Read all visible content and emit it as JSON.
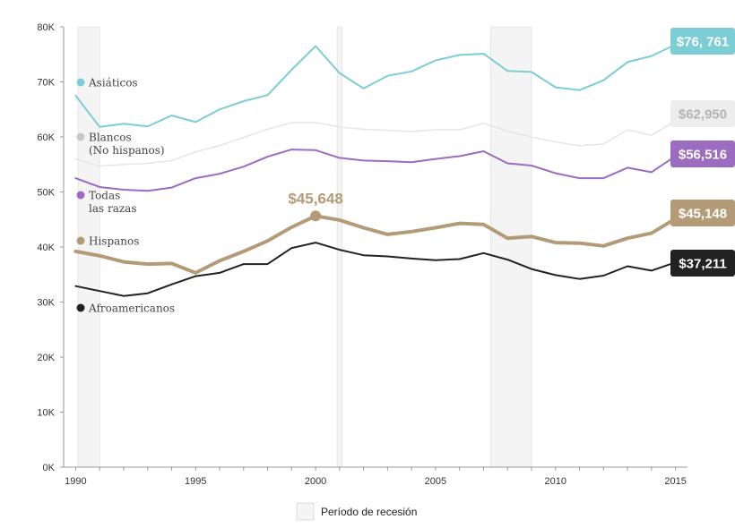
{
  "chart_data": {
    "type": "line",
    "x": [
      1990,
      1991,
      1992,
      1993,
      1994,
      1995,
      1996,
      1997,
      1998,
      1999,
      2000,
      2001,
      2002,
      2003,
      2004,
      2005,
      2006,
      2007,
      2008,
      2009,
      2010,
      2011,
      2012,
      2013,
      2014,
      2015
    ],
    "x_ticks": [
      "1990",
      "1995",
      "2000",
      "2005",
      "2010",
      "2015"
    ],
    "x_tick_values": [
      1990,
      1995,
      2000,
      2005,
      2010,
      2015
    ],
    "y_ticks": [
      "0K",
      "10K",
      "20K",
      "30K",
      "40K",
      "50K",
      "60K",
      "70K",
      "80K"
    ],
    "y_tick_values": [
      0,
      10000,
      20000,
      30000,
      40000,
      50000,
      60000,
      70000,
      80000
    ],
    "xlim": [
      1989.5,
      2015.5
    ],
    "ylim": [
      0,
      80000
    ],
    "grid": false,
    "legend_position": "left",
    "recessions": [
      [
        1990.1,
        1991.0
      ],
      [
        2000.9,
        2001.1
      ],
      [
        2007.3,
        2009.0
      ]
    ],
    "recession_label": "Período de recesión",
    "annotation": {
      "x": 2000,
      "y": 45648,
      "label": "$45,648",
      "color": "#b49b78"
    },
    "series": [
      {
        "name": "Asiáticos",
        "color": "#7dcdd6",
        "width": 2,
        "end_label": "$76, 761",
        "end_label_color": "#ffffff",
        "values": [
          67500,
          61800,
          62400,
          61900,
          63900,
          62700,
          65000,
          66500,
          67600,
          72200,
          76500,
          71600,
          68800,
          71100,
          71900,
          73900,
          74900,
          75100,
          72000,
          71800,
          69000,
          68500,
          70300,
          73600,
          74700,
          76761
        ]
      },
      {
        "name": "Blancos",
        "name2": "(No hispanos)",
        "color": "#e6e6e6",
        "width": 1.6,
        "end_label": "$62,950",
        "end_label_color": "#b4b4b4",
        "values": [
          56000,
          54700,
          55000,
          55200,
          55700,
          57300,
          58400,
          59900,
          61400,
          62600,
          62600,
          61800,
          61400,
          61200,
          61000,
          61300,
          61300,
          62500,
          61000,
          60000,
          59100,
          58400,
          58700,
          61300,
          60300,
          62950
        ]
      },
      {
        "name": "Todas",
        "name2": "las razas",
        "color": "#9b6cbf",
        "width": 2,
        "end_label": "$56,516",
        "end_label_color": "#ffffff",
        "values": [
          52500,
          50900,
          50400,
          50200,
          50800,
          52500,
          53300,
          54600,
          56400,
          57700,
          57600,
          56200,
          55700,
          55600,
          55400,
          56000,
          56500,
          57400,
          55200,
          54800,
          53400,
          52500,
          52500,
          54400,
          53600,
          56516
        ]
      },
      {
        "name": "Hispanos",
        "color": "#b49b78",
        "width": 4,
        "end_label": "$45,148",
        "end_label_color": "#ffffff",
        "values": [
          39200,
          38400,
          37300,
          36900,
          37000,
          35300,
          37500,
          39200,
          41100,
          43600,
          45648,
          44900,
          43500,
          42300,
          42800,
          43500,
          44300,
          44100,
          41600,
          41900,
          40800,
          40700,
          40200,
          41600,
          42500,
          45148
        ]
      },
      {
        "name": "Afroamericanos",
        "color": "#222222",
        "width": 2,
        "end_label": "$37,211",
        "end_label_color": "#ffffff",
        "values": [
          32900,
          32000,
          31100,
          31600,
          33200,
          34700,
          35300,
          36900,
          36900,
          39800,
          40800,
          39500,
          38500,
          38300,
          37900,
          37600,
          37800,
          38900,
          37700,
          36000,
          34900,
          34200,
          34800,
          36500,
          35700,
          37211
        ]
      }
    ]
  }
}
